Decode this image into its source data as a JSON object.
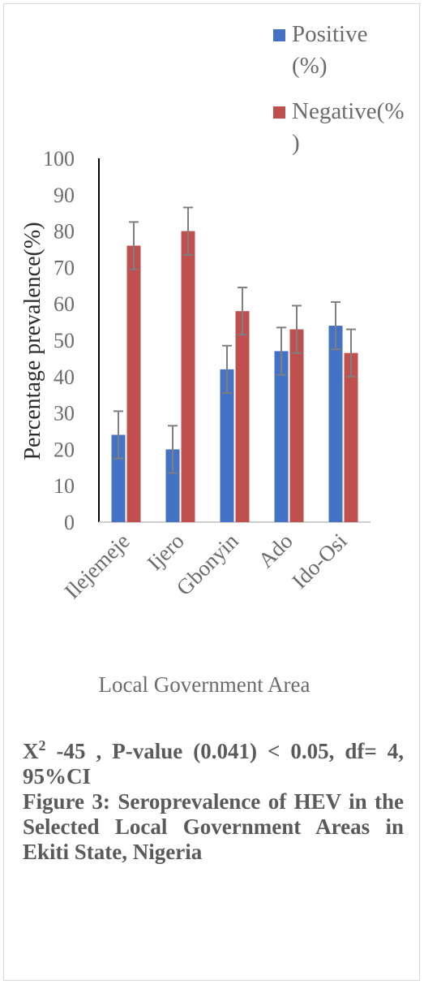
{
  "chart_data": {
    "type": "bar",
    "categories": [
      "Ilejemeje",
      "Ijero",
      "Gbonyin",
      "Ado",
      "Ido-Osi"
    ],
    "series": [
      {
        "name_lines": [
          "Positive",
          "(%)"
        ],
        "values": [
          24,
          20,
          42,
          47,
          54
        ],
        "error": [
          6.5,
          6.5,
          6.5,
          6.5,
          6.5
        ],
        "color": "#4472c4"
      },
      {
        "name_lines": [
          "Negative(%",
          ")"
        ],
        "values": [
          76,
          80,
          58,
          53,
          46.5
        ],
        "error": [
          6.5,
          6.5,
          6.5,
          6.5,
          6.5
        ],
        "color": "#c0504d"
      }
    ],
    "ylim": [
      0,
      100
    ],
    "yticks": [
      "0",
      "10",
      "20",
      "30",
      "40",
      "50",
      "60",
      "70",
      "80",
      "90",
      "100"
    ],
    "ylabel": "Percentage prevalence(%)",
    "xlabel": "Local Government Area",
    "legend_position": "top-right",
    "grid": false
  },
  "caption": {
    "stat_prefix": "X",
    "stat_sup": "2",
    "stat_rest": " -45 , P-value (0.041) < 0.05, df= 4, 95%CI",
    "figure_text": "Figure 3: Seroprevalence of HEV in the Selected Local Government Areas in Ekiti State, Nigeria"
  }
}
